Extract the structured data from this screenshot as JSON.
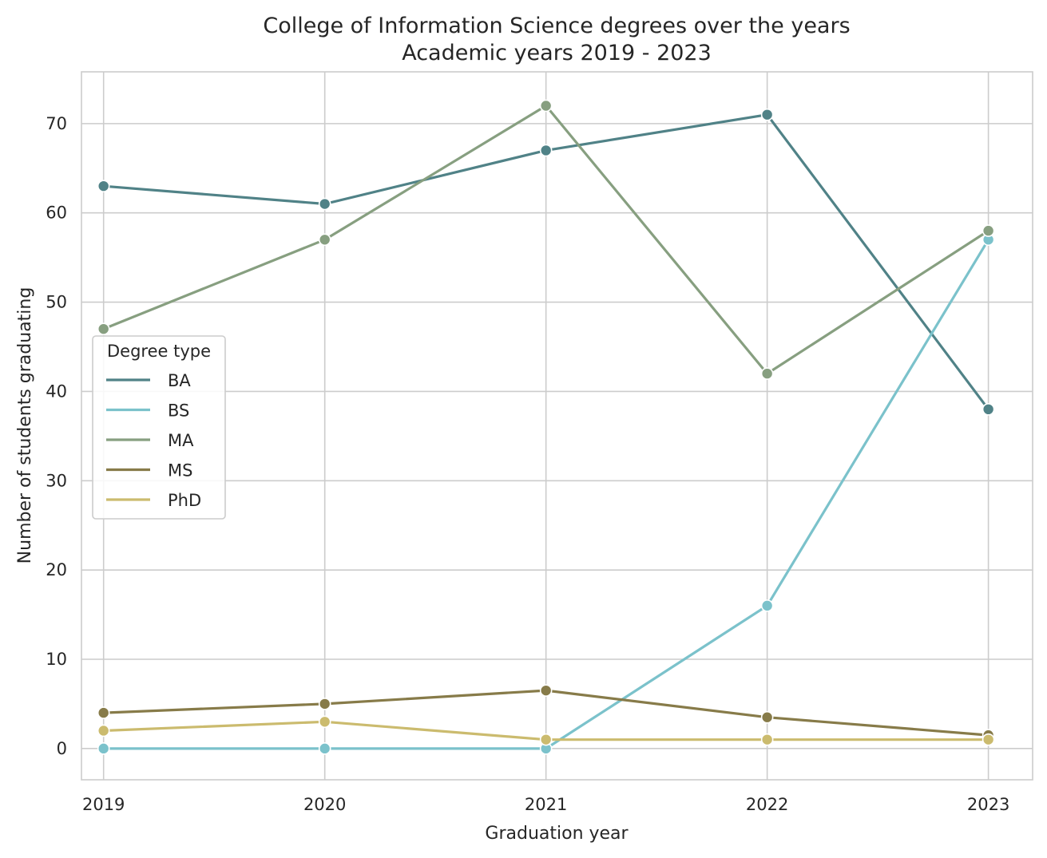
{
  "chart_data": {
    "type": "line",
    "title": "College of Information Science degrees over the years",
    "subtitle": "Academic years 2019 - 2023",
    "xlabel": "Graduation year",
    "ylabel": "Number of students graduating",
    "x": [
      2019,
      2020,
      2021,
      2022,
      2023
    ],
    "x_tick_labels": [
      "2019",
      "2020",
      "2021",
      "2022",
      "2023"
    ],
    "xlim": [
      2018.9,
      2023.2
    ],
    "ylim": [
      -3.5,
      75.8
    ],
    "y_ticks": [
      0,
      10,
      20,
      30,
      40,
      50,
      60,
      70
    ],
    "y_tick_labels": [
      "0",
      "10",
      "20",
      "30",
      "40",
      "50",
      "60",
      "70"
    ],
    "grid": true,
    "legend": {
      "title": "Degree type",
      "placement": "center-left"
    },
    "series": [
      {
        "name": "BA",
        "color": "#508287",
        "values": [
          63,
          61,
          67,
          71,
          38
        ]
      },
      {
        "name": "BS",
        "color": "#7bc2cb",
        "values": [
          0,
          0,
          0,
          16,
          57
        ]
      },
      {
        "name": "MA",
        "color": "#879f80",
        "values": [
          47,
          57,
          72,
          42,
          58
        ]
      },
      {
        "name": "MS",
        "color": "#877b49",
        "values": [
          4,
          5,
          6.5,
          3.5,
          1.5
        ]
      },
      {
        "name": "PhD",
        "color": "#cbbb6e",
        "values": [
          2,
          3,
          1,
          1,
          1
        ]
      }
    ]
  }
}
